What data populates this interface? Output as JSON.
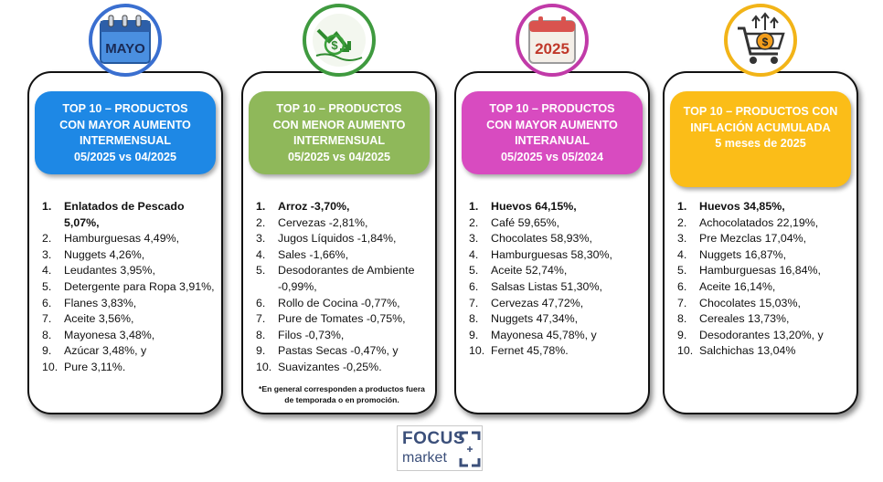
{
  "cards": [
    {
      "icon": "calendar-mayo-icon",
      "icon_text": "MAYO",
      "header_color": "#1e88e5",
      "icon_ring": "#3a6fd0",
      "header_lines": [
        "TOP 10 – PRODUCTOS",
        "CON MAYOR AUMENTO",
        "INTERMENSUAL",
        "05/2025 vs  04/2025"
      ],
      "items": [
        {
          "num": "1.",
          "text": "Enlatados de Pescado 5,07%,"
        },
        {
          "num": "2.",
          "text": "Hamburguesas 4,49%,"
        },
        {
          "num": "3.",
          "text": "Nuggets 4,26%,"
        },
        {
          "num": "4.",
          "text": "Leudantes 3,95%,"
        },
        {
          "num": "5.",
          "text": "Detergente para Ropa 3,91%,"
        },
        {
          "num": "6.",
          "text": "Flanes 3,83%,"
        },
        {
          "num": "7.",
          "text": "Aceite 3,56%,"
        },
        {
          "num": "8.",
          "text": "Mayonesa 3,48%,"
        },
        {
          "num": "9.",
          "text": "Azúcar 3,48%, y"
        },
        {
          "num": "10.",
          "text": "Pure 3,11%."
        }
      ]
    },
    {
      "icon": "money-down-arrow-icon",
      "header_color": "#8fb85a",
      "icon_ring": "#3f9a3f",
      "header_lines": [
        "TOP 10 – PRODUCTOS",
        "CON MENOR AUMENTO",
        "INTERMENSUAL",
        "05/2025 vs  04/2025"
      ],
      "items": [
        {
          "num": "1.",
          "text": "Arroz -3,70%,"
        },
        {
          "num": "2.",
          "text": "Cervezas -2,81%,"
        },
        {
          "num": "3.",
          "text": "Jugos Líquidos -1,84%,"
        },
        {
          "num": "4.",
          "text": "Sales -1,66%,"
        },
        {
          "num": "5.",
          "text": "Desodorantes de Ambiente -0,99%,"
        },
        {
          "num": "6.",
          "text": "Rollo de Cocina -0,77%,"
        },
        {
          "num": "7.",
          "text": "Pure de Tomates -0,75%,"
        },
        {
          "num": "8.",
          "text": "Filos -0,73%,"
        },
        {
          "num": "9.",
          "text": "Pastas Secas -0,47%, y"
        },
        {
          "num": "10.",
          "text": "Suavizantes -0,25%."
        }
      ],
      "note": "*En general corresponden a productos fuera de temporada o en promoción."
    },
    {
      "icon": "calendar-2025-icon",
      "icon_text": "2025",
      "header_color": "#d84bc0",
      "icon_ring": "#c13aa8",
      "header_lines": [
        "TOP 10 – PRODUCTOS",
        "CON MAYOR AUMENTO",
        "INTERANUAL",
        "05/2025 vs  05/2024"
      ],
      "items": [
        {
          "num": "1.",
          "text": "Huevos 64,15%,"
        },
        {
          "num": "2.",
          "text": "Café 59,65%,"
        },
        {
          "num": "3.",
          "text": "Chocolates 58,93%,"
        },
        {
          "num": "4.",
          "text": "Hamburguesas 58,30%,"
        },
        {
          "num": "5.",
          "text": "Aceite 52,74%,"
        },
        {
          "num": "6.",
          "text": "Salsas Listas 51,30%,"
        },
        {
          "num": "7.",
          "text": "Cervezas 47,72%,"
        },
        {
          "num": "8.",
          "text": "Nuggets 47,34%,"
        },
        {
          "num": "9.",
          "text": "Mayonesa 45,78%, y"
        },
        {
          "num": "10.",
          "text": "Fernet 45,78%."
        }
      ]
    },
    {
      "icon": "shopping-cart-dollar-icon",
      "header_color": "#fbbd18",
      "icon_ring": "#f2b418",
      "header_lines": [
        "TOP 10 – PRODUCTOS CON",
        "INFLACIÓN ACUMULADA",
        "5 meses de 2025"
      ],
      "items": [
        {
          "num": "1.",
          "text": "Huevos 34,85%,"
        },
        {
          "num": "2.",
          "text": "Achocolatados 22,19%,"
        },
        {
          "num": "3.",
          "text": "Pre Mezclas 17,04%,"
        },
        {
          "num": "4.",
          "text": "Nuggets 16,87%,"
        },
        {
          "num": "5.",
          "text": "Hamburguesas 16,84%,"
        },
        {
          "num": "6.",
          "text": "Aceite 16,14%,"
        },
        {
          "num": "7.",
          "text": "Chocolates 15,03%,"
        },
        {
          "num": "8.",
          "text": "Cereales 13,73%,"
        },
        {
          "num": "9.",
          "text": "Desodorantes 13,20%, y"
        },
        {
          "num": "10.",
          "text": "Salchichas 13,04%"
        }
      ]
    }
  ],
  "logo": {
    "word1": "FOCUS",
    "word2": "market"
  }
}
